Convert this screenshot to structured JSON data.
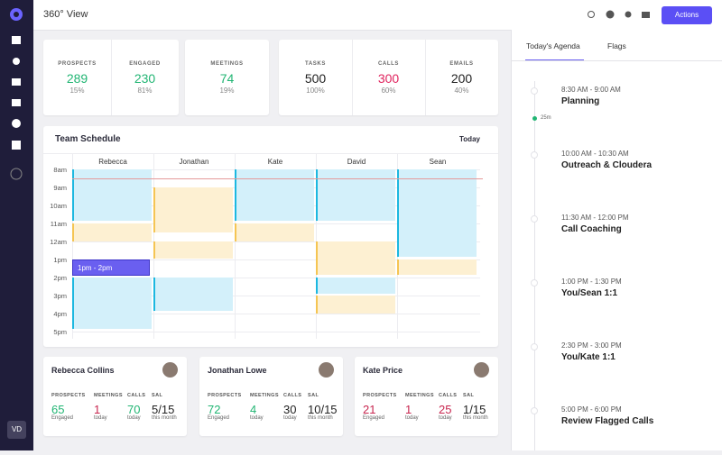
{
  "header": {
    "title": "360° View",
    "actions": "Actions"
  },
  "sidebar": {
    "user": "VD"
  },
  "stats": [
    [
      {
        "label": "PROSPECTS",
        "value": "289",
        "pct": "15%"
      },
      {
        "label": "ENGAGED",
        "value": "230",
        "pct": "81%"
      }
    ],
    [
      {
        "label": "MEETINGS",
        "value": "74",
        "pct": "19%"
      }
    ],
    [
      {
        "label": "TASKS",
        "value": "500",
        "pct": "100%"
      },
      {
        "label": "CALLS",
        "value": "300",
        "pct": "60%"
      },
      {
        "label": "EMAILS",
        "value": "200",
        "pct": "40%"
      }
    ]
  ],
  "schedule": {
    "title": "Team Schedule",
    "range": "Today",
    "people": [
      "Rebecca",
      "Jonathan",
      "Kate",
      "David",
      "Sean"
    ],
    "hours": [
      "8am",
      "9am",
      "10am",
      "11am",
      "12am",
      "1pm",
      "2pm",
      "3pm",
      "4pm",
      "5pm"
    ],
    "event": "1pm - 2pm"
  },
  "people_cards": [
    {
      "name": "Rebecca Collins",
      "stats": [
        {
          "label": "PROSPECTS",
          "value": "65",
          "sub": "Engaged"
        },
        {
          "label": "MEETINGS",
          "value": "1",
          "sub": "today"
        },
        {
          "label": "CALLS",
          "value": "70",
          "sub": "today"
        },
        {
          "label": "SAL",
          "value": "5/15",
          "sub": "this month"
        }
      ]
    },
    {
      "name": "Jonathan Lowe",
      "stats": [
        {
          "label": "PROSPECTS",
          "value": "72",
          "sub": "Engaged"
        },
        {
          "label": "MEETINGS",
          "value": "4",
          "sub": "today"
        },
        {
          "label": "CALLS",
          "value": "30",
          "sub": "today"
        },
        {
          "label": "SAL",
          "value": "10/15",
          "sub": "this month"
        }
      ]
    },
    {
      "name": "Kate Price",
      "stats": [
        {
          "label": "PROSPECTS",
          "value": "21",
          "sub": "Engaged"
        },
        {
          "label": "MEETINGS",
          "value": "1",
          "sub": "today"
        },
        {
          "label": "CALLS",
          "value": "25",
          "sub": "today"
        },
        {
          "label": "SAL",
          "value": "1/15",
          "sub": "this month"
        }
      ]
    }
  ],
  "agenda": {
    "tabs": [
      "Today's Agenda",
      "Flags"
    ],
    "now": "25m",
    "items": [
      {
        "time": "8:30 AM - 9:00 AM",
        "title": "Planning"
      },
      {
        "time": "10:00 AM - 10:30 AM",
        "title": "Outreach & Cloudera"
      },
      {
        "time": "11:30 AM - 12:00 PM",
        "title": "Call Coaching"
      },
      {
        "time": "1:00 PM - 1:30 PM",
        "title": "You/Sean 1:1"
      },
      {
        "time": "2:30 PM - 3:00 PM",
        "title": "You/Kate 1:1"
      },
      {
        "time": "5:00 PM - 6:00 PM",
        "title": "Review Flagged Calls"
      }
    ]
  }
}
